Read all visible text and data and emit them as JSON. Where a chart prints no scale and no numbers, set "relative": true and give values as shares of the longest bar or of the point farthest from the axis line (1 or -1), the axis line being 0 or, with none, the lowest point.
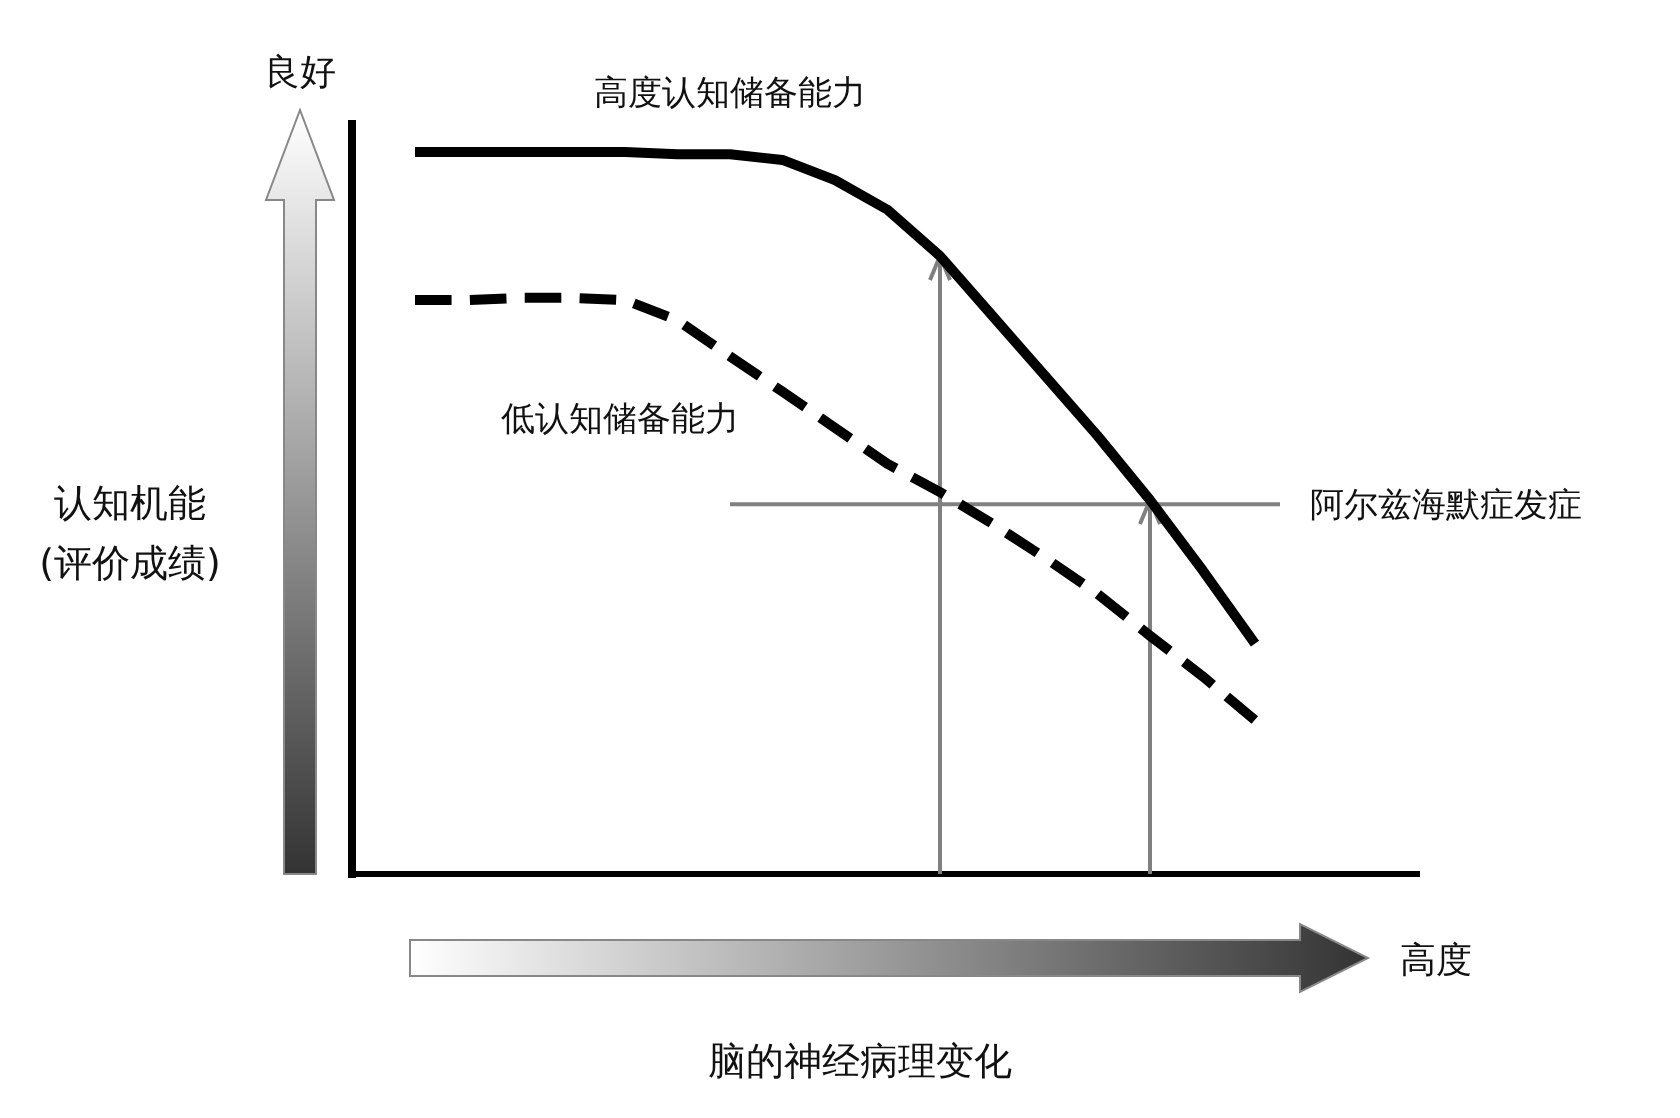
{
  "chart_data": {
    "type": "line",
    "relative": true,
    "xlabel": "脑的神经病理变化",
    "ylabel": "认知机能\n(评价成绩)",
    "categories": [
      null,
      null,
      null,
      null,
      null,
      null,
      null,
      null,
      null,
      null,
      null,
      null,
      null,
      null,
      null,
      null,
      null
    ],
    "series": [
      {
        "name": "高度认知储备能力",
        "color": "#000000",
        "line_style": "solid",
        "values": [
          1,
          1,
          1,
          1,
          1,
          0.997,
          0.997,
          0.989,
          0.961,
          0.92,
          0.856,
          0.773,
          0.69,
          0.607,
          0.518,
          0.421,
          0.319
        ]
      },
      {
        "name": "低认知储备能力",
        "color": "#000000",
        "line_style": "dashed",
        "values": [
          0.795,
          0.795,
          0.798,
          0.798,
          0.795,
          0.767,
          0.717,
          0.668,
          0.618,
          0.568,
          0.529,
          0.485,
          0.438,
          0.388,
          0.33,
          0.274,
          0.213
        ]
      }
    ],
    "ref_lines": [
      {
        "axis": "y",
        "value": 0.512,
        "label": "阿尔兹海默症发症",
        "color": "#808080"
      }
    ],
    "annotations": [
      "良好",
      "高度"
    ],
    "grid": false,
    "legend": false
  }
}
